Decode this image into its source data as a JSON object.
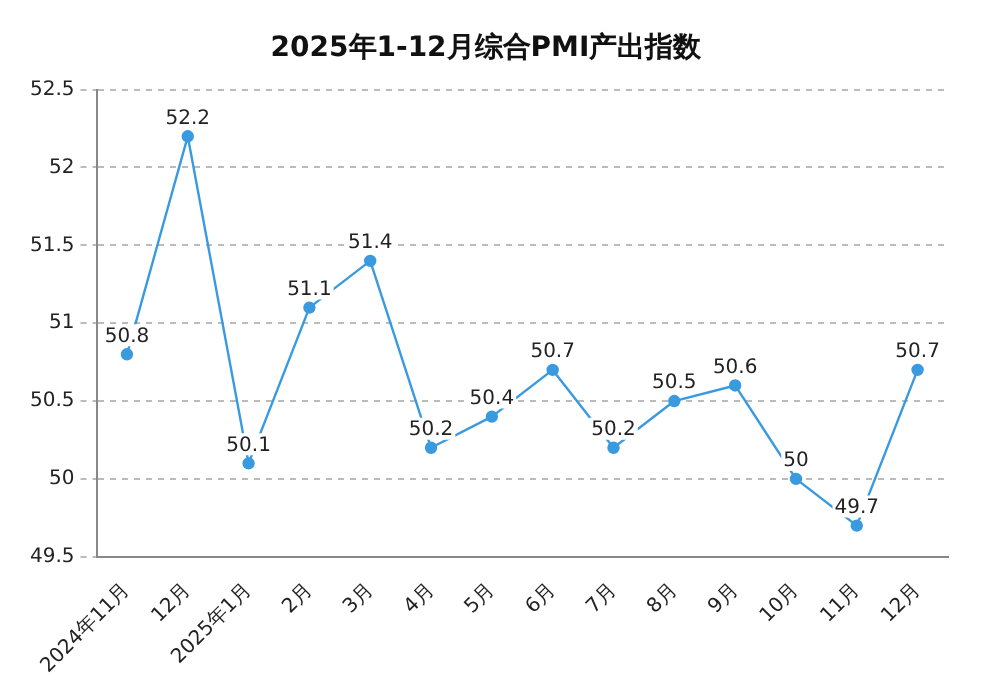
{
  "chart_data": {
    "type": "line",
    "title": "2025年1-12月综合PMI产出指数",
    "categories": [
      "2024年11月",
      "12月",
      "2025年1月",
      "2月",
      "3月",
      "4月",
      "5月",
      "6月",
      "7月",
      "8月",
      "9月",
      "10月",
      "11月",
      "12月"
    ],
    "series": [
      {
        "color": "#3a9ae0",
        "values": [
          50.8,
          52.2,
          50.1,
          51.1,
          51.4,
          50.2,
          50.4,
          50.7,
          50.2,
          50.5,
          50.6,
          50,
          49.7,
          50.7
        ]
      }
    ],
    "ylim": [
      49.5,
      52.5
    ],
    "yticks": [
      49.5,
      50,
      50.5,
      51,
      51.5,
      52,
      52.5
    ],
    "grid": "y",
    "marker": "circle",
    "line_style": "solid",
    "data_labels": true,
    "legend": false
  }
}
